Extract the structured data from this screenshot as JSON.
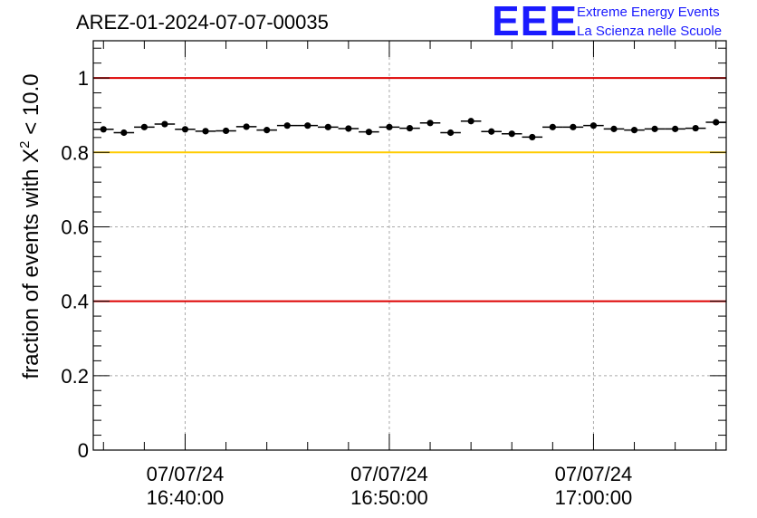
{
  "chart_data": {
    "type": "scatter",
    "title": "AREZ-01-2024-07-07-00035",
    "ylabel": {
      "prefix": "fraction of events with ",
      "symbol": "X",
      "superscript": "2",
      "suffix": " < 10.0"
    },
    "xlabel": "",
    "x_unit": "minutes",
    "x_range": [
      -4.5,
      26.5
    ],
    "ylim": [
      0,
      1.1
    ],
    "y_ticks": [
      {
        "value": 0,
        "label": "0"
      },
      {
        "value": 0.2,
        "label": "0.2"
      },
      {
        "value": 0.4,
        "label": "0.4"
      },
      {
        "value": 0.6,
        "label": "0.6"
      },
      {
        "value": 0.8,
        "label": "0.8"
      },
      {
        "value": 1,
        "label": "1"
      }
    ],
    "x_ticks": [
      {
        "value": 0,
        "date": "07/07/24",
        "time": "16:40:00"
      },
      {
        "value": 10,
        "date": "07/07/24",
        "time": "16:50:00"
      },
      {
        "value": 20,
        "date": "07/07/24",
        "time": "17:00:00"
      }
    ],
    "grid": true,
    "reference_lines": [
      {
        "y": 1.0,
        "color": "#dd0000"
      },
      {
        "y": 0.8,
        "color": "#ffcc00"
      },
      {
        "y": 0.4,
        "color": "#dd0000"
      }
    ],
    "bin_width": 1,
    "x_start": -4,
    "values": [
      0.862,
      0.853,
      0.868,
      0.876,
      0.862,
      0.857,
      0.858,
      0.869,
      0.86,
      0.872,
      0.872,
      0.868,
      0.864,
      0.855,
      0.868,
      0.865,
      0.879,
      0.853,
      0.884,
      0.856,
      0.85,
      0.841,
      0.868,
      0.868,
      0.872,
      0.863,
      0.86,
      0.863,
      0.863,
      0.865,
      0.881
    ]
  },
  "logo": {
    "letters": "EEE",
    "line1": "Extreme Energy Events",
    "line2": "La Scienza nelle Scuole"
  }
}
